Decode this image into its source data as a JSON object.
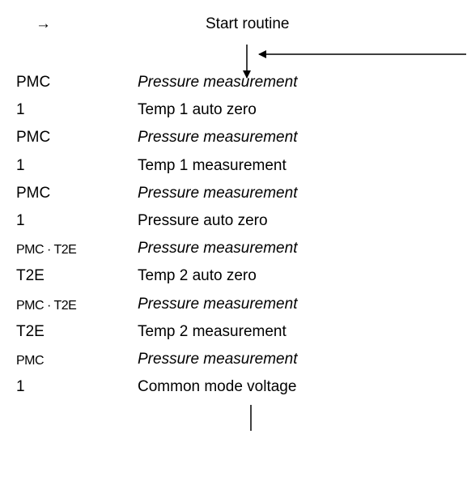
{
  "header": {
    "arrow": "→",
    "title": "Start routine"
  },
  "rows": [
    {
      "code": "PMC",
      "step": "Pressure measurement"
    },
    {
      "code": "1",
      "step": "Temp 1 auto zero"
    },
    {
      "code": "PMC",
      "step": "Pressure measurement"
    },
    {
      "code": "1",
      "step": "Temp 1 measurement"
    },
    {
      "code": "PMC",
      "step": "Pressure measurement"
    },
    {
      "code": "1",
      "step": "Pressure auto zero"
    },
    {
      "code": "PMC · T2E",
      "step": "Pressure measurement"
    },
    {
      "code": "T2E",
      "step": "Temp 2 auto zero"
    },
    {
      "code": "PMC · T2E",
      "step": "Pressure measurement"
    },
    {
      "code": "T2E",
      "step": "Temp 2 measurement"
    },
    {
      "code": "PMC",
      "step": "Pressure measurement"
    },
    {
      "code": "1",
      "step": "Common mode voltage"
    }
  ]
}
